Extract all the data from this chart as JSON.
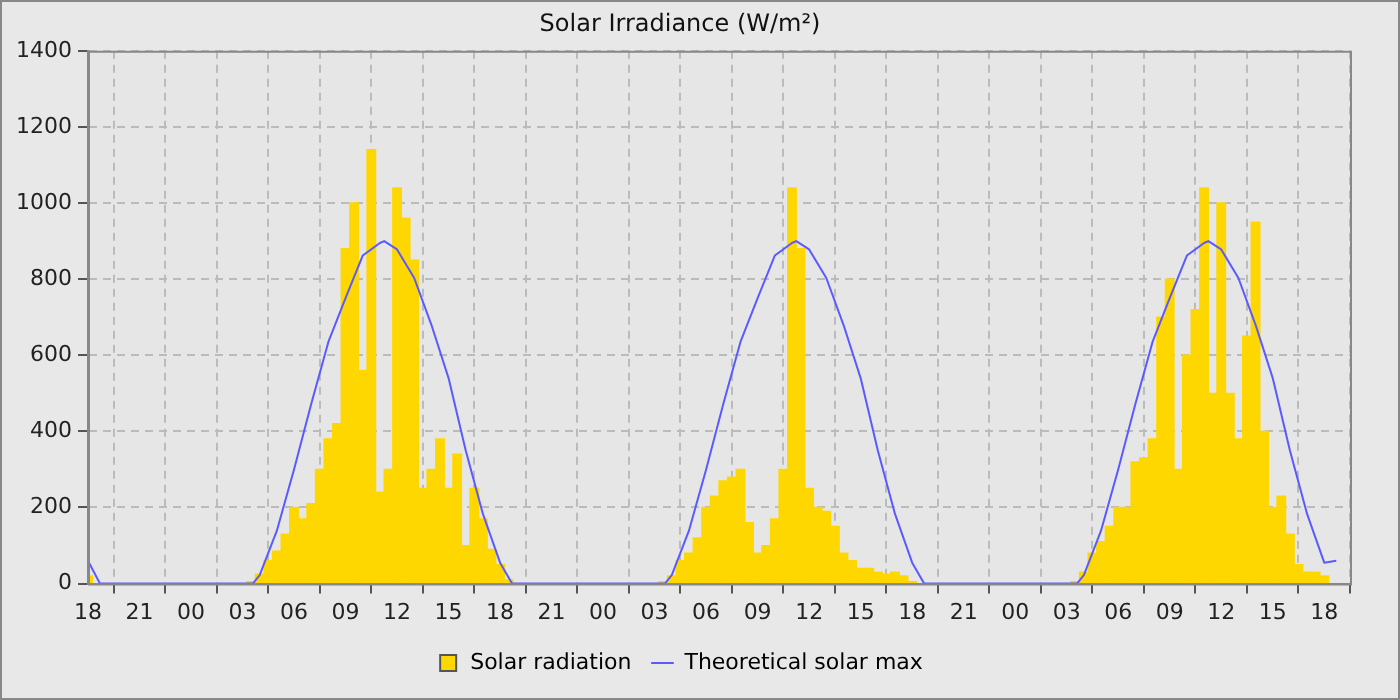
{
  "chart_data": {
    "type": "bar",
    "title": "Solar Irradiance (W/m²)",
    "xlim": [
      18,
      91.5
    ],
    "xticks": [
      {
        "value": 18,
        "label": "18"
      },
      {
        "value": 21,
        "label": "21"
      },
      {
        "value": 24,
        "label": "00"
      },
      {
        "value": 27,
        "label": "03"
      },
      {
        "value": 30,
        "label": "06"
      },
      {
        "value": 33,
        "label": "09"
      },
      {
        "value": 36,
        "label": "12"
      },
      {
        "value": 39,
        "label": "15"
      },
      {
        "value": 42,
        "label": "18"
      },
      {
        "value": 45,
        "label": "21"
      },
      {
        "value": 48,
        "label": "00"
      },
      {
        "value": 51,
        "label": "03"
      },
      {
        "value": 54,
        "label": "06"
      },
      {
        "value": 57,
        "label": "09"
      },
      {
        "value": 60,
        "label": "12"
      },
      {
        "value": 63,
        "label": "15"
      },
      {
        "value": 66,
        "label": "18"
      },
      {
        "value": 69,
        "label": "21"
      },
      {
        "value": 72,
        "label": "00"
      },
      {
        "value": 75,
        "label": "03"
      },
      {
        "value": 78,
        "label": "06"
      },
      {
        "value": 81,
        "label": "09"
      },
      {
        "value": 84,
        "label": "12"
      },
      {
        "value": 87,
        "label": "15"
      },
      {
        "value": 90,
        "label": "18"
      }
    ],
    "ylim": [
      0,
      1400
    ],
    "yticks": [
      0,
      200,
      400,
      600,
      800,
      1000,
      1200,
      1400
    ],
    "grid": true,
    "legend": "bottom",
    "series": [
      {
        "name": "Solar radiation",
        "color": "#ffd700",
        "x": [
          18,
          27.5,
          28,
          28.5,
          29,
          29.5,
          30,
          30.5,
          31,
          31.5,
          32,
          32.5,
          33,
          33.5,
          34,
          34.5,
          35,
          35.5,
          36,
          36.5,
          37,
          37.5,
          38,
          38.5,
          39,
          39.5,
          40,
          40.5,
          41,
          41.5,
          42,
          42.5,
          51.5,
          52,
          52.5,
          53,
          53.5,
          54,
          54.5,
          55,
          55.5,
          56,
          56.5,
          57,
          57.5,
          58,
          58.5,
          59,
          59.5,
          60,
          60.5,
          61,
          61.5,
          62,
          62.5,
          63,
          63.5,
          64,
          64.5,
          65,
          65.5,
          66,
          75.5,
          76,
          76.5,
          77,
          77.5,
          78,
          78.5,
          79,
          79.5,
          80,
          80.5,
          81,
          81.5,
          82,
          82.5,
          83,
          83.5,
          84,
          84.5,
          85,
          85.5,
          86,
          86.5,
          87,
          87.5,
          88,
          88.5,
          89,
          89.5,
          90
        ],
        "values": [
          20,
          5,
          25,
          60,
          85,
          130,
          200,
          170,
          210,
          300,
          380,
          420,
          880,
          1000,
          560,
          1140,
          240,
          300,
          1040,
          960,
          850,
          250,
          300,
          380,
          250,
          340,
          100,
          250,
          170,
          90,
          50,
          10,
          5,
          20,
          60,
          80,
          120,
          200,
          230,
          270,
          280,
          300,
          160,
          80,
          100,
          170,
          300,
          1040,
          880,
          250,
          200,
          190,
          150,
          80,
          60,
          40,
          40,
          30,
          25,
          30,
          20,
          5,
          5,
          30,
          80,
          110,
          150,
          200,
          200,
          320,
          330,
          380,
          700,
          800,
          300,
          600,
          720,
          1040,
          500,
          1000,
          500,
          380,
          650,
          950,
          400,
          200,
          230,
          130,
          50,
          30,
          30,
          20
        ]
      },
      {
        "name": "Theoretical solar max",
        "type": "line",
        "color": "#5a5aff",
        "x": [
          18,
          18.7,
          27.6,
          28,
          29,
          30,
          31,
          32,
          33,
          34,
          35,
          35.25,
          36,
          37,
          38,
          39,
          40,
          41,
          42,
          42.7,
          51.6,
          52,
          53,
          54,
          55,
          56,
          57,
          58,
          59,
          59.25,
          60,
          61,
          62,
          63,
          64,
          65,
          66,
          66.7,
          75.6,
          76,
          77,
          78,
          79,
          80,
          81,
          82,
          83,
          83.25,
          84,
          85,
          86,
          87,
          88,
          89,
          90,
          90.7
        ],
        "values": [
          60,
          0,
          0,
          22,
          139,
          300,
          472,
          635,
          750,
          862,
          895,
          900,
          878,
          803,
          680,
          540,
          350,
          183,
          55,
          0,
          0,
          22,
          139,
          300,
          472,
          635,
          750,
          862,
          895,
          900,
          878,
          803,
          680,
          540,
          350,
          183,
          55,
          0,
          0,
          22,
          139,
          300,
          472,
          635,
          750,
          862,
          895,
          900,
          878,
          803,
          680,
          540,
          350,
          183,
          55,
          60
        ]
      }
    ]
  }
}
